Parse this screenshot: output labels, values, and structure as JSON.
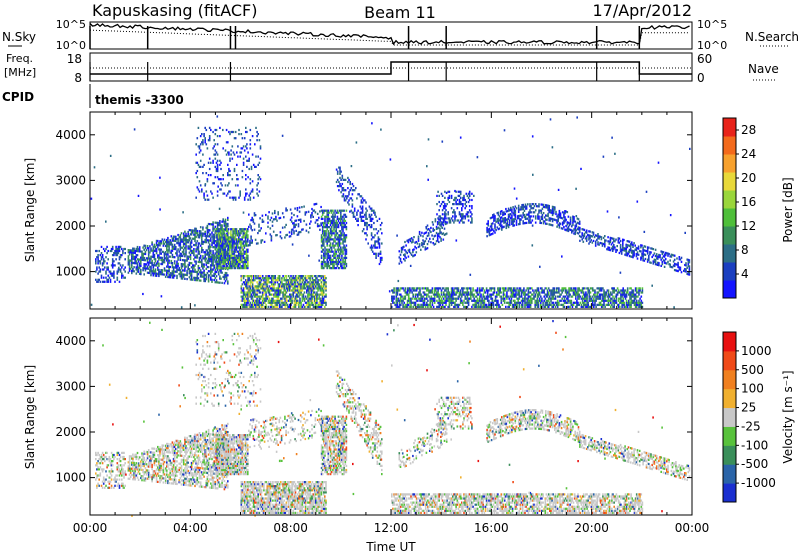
{
  "header": {
    "station": "Kapuskasing (fitACF)",
    "beam": "Beam 11",
    "date": "17/Apr/2012"
  },
  "sky_panel": {
    "left_label": "N.Sky",
    "right_label": "N.Search",
    "left_ticks": [
      "10^5",
      "10^0"
    ],
    "right_ticks": [
      "10^5",
      "10^0"
    ]
  },
  "freq_panel": {
    "left_label_line1": "Freq.",
    "left_label_line2": "[MHz]",
    "right_label": "Nave",
    "left_ticks": [
      "18",
      "8"
    ],
    "right_ticks": [
      "60",
      "0"
    ]
  },
  "cpid": {
    "label": "CPID",
    "mode": "themis -3300"
  },
  "chart_data": [
    {
      "type": "heatmap",
      "title": "",
      "quantity": "Power",
      "xlabel": "",
      "ylabel": "Slant Range [km]",
      "xlim_hours": [
        0,
        24
      ],
      "ylim_km": [
        180,
        4500
      ],
      "y_ticks": [
        1000,
        2000,
        3000,
        4000
      ],
      "colorbar_label": "Power [dB]",
      "colorbar_ticks": [
        "4",
        "8",
        "12",
        "16",
        "20",
        "24",
        "28"
      ],
      "colorbar_range": [
        0,
        30
      ],
      "colorbar_colors": [
        "#1414ff",
        "#1b3fc0",
        "#2c6e86",
        "#3a8f5a",
        "#4fbf3a",
        "#9ad63b",
        "#e8d83a",
        "#f7a12e",
        "#f36a1c",
        "#e8231a"
      ]
    },
    {
      "type": "heatmap",
      "title": "",
      "quantity": "Velocity",
      "xlabel": "Time UT",
      "ylabel": "Slant Range [km]",
      "xlim_hours": [
        0,
        24
      ],
      "ylim_km": [
        180,
        4500
      ],
      "y_ticks": [
        1000,
        2000,
        3000,
        4000
      ],
      "x_tick_labels": [
        "00:00",
        "04:00",
        "08:00",
        "12:00",
        "16:00",
        "20:00",
        "00:00"
      ],
      "colorbar_label": "Velocity [m s⁻¹]",
      "colorbar_ticks": [
        "1000",
        "500",
        "100",
        "25",
        "-25",
        "-100",
        "-500",
        "-1000"
      ],
      "colorbar_colors": [
        "#1a2fd0",
        "#2a64a8",
        "#3a8f5a",
        "#58c23c",
        "#c8c8c8",
        "#f0b030",
        "#f08020",
        "#f04a18",
        "#e81010"
      ]
    }
  ]
}
